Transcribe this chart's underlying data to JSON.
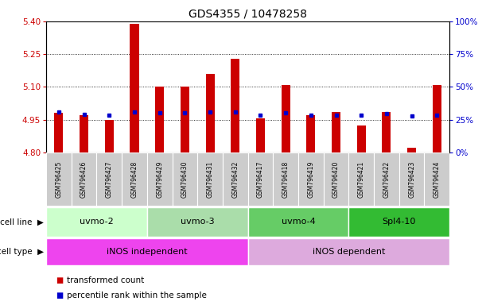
{
  "title": "GDS4355 / 10478258",
  "samples": [
    "GSM796425",
    "GSM796426",
    "GSM796427",
    "GSM796428",
    "GSM796429",
    "GSM796430",
    "GSM796431",
    "GSM796432",
    "GSM796417",
    "GSM796418",
    "GSM796419",
    "GSM796420",
    "GSM796421",
    "GSM796422",
    "GSM796423",
    "GSM796424"
  ],
  "transformed_counts": [
    4.98,
    4.97,
    4.95,
    5.39,
    5.1,
    5.1,
    5.16,
    5.23,
    4.955,
    5.11,
    4.97,
    4.985,
    4.925,
    4.985,
    4.82,
    5.11
  ],
  "percentile_values": [
    4.985,
    4.975,
    4.972,
    4.985,
    4.982,
    4.982,
    4.985,
    4.985,
    4.972,
    4.982,
    4.972,
    4.972,
    4.972,
    4.978,
    4.968,
    4.972
  ],
  "y_min": 4.8,
  "y_max": 5.4,
  "y_ticks_left": [
    4.8,
    4.95,
    5.1,
    5.25,
    5.4
  ],
  "y_ticks_right_labels": [
    "0%",
    "25%",
    "50%",
    "75%",
    "100%"
  ],
  "bar_color": "#cc0000",
  "dot_color": "#0000cc",
  "bar_width": 0.35,
  "cell_line_groups": [
    {
      "label": "uvmo-2",
      "start": 0,
      "end": 3,
      "color": "#ccffcc"
    },
    {
      "label": "uvmo-3",
      "start": 4,
      "end": 7,
      "color": "#aaddaa"
    },
    {
      "label": "uvmo-4",
      "start": 8,
      "end": 11,
      "color": "#66cc66"
    },
    {
      "label": "Spl4-10",
      "start": 12,
      "end": 15,
      "color": "#33bb33"
    }
  ],
  "cell_type_groups": [
    {
      "label": "iNOS independent",
      "start": 0,
      "end": 7,
      "color": "#ee44ee"
    },
    {
      "label": "iNOS dependent",
      "start": 8,
      "end": 15,
      "color": "#ddaadd"
    }
  ],
  "legend_red_label": "transformed count",
  "legend_blue_label": "percentile rank within the sample",
  "title_fontsize": 10,
  "tick_fontsize": 7.5,
  "sample_fontsize": 5.5,
  "group_label_fontsize": 8,
  "legend_fontsize": 7.5
}
